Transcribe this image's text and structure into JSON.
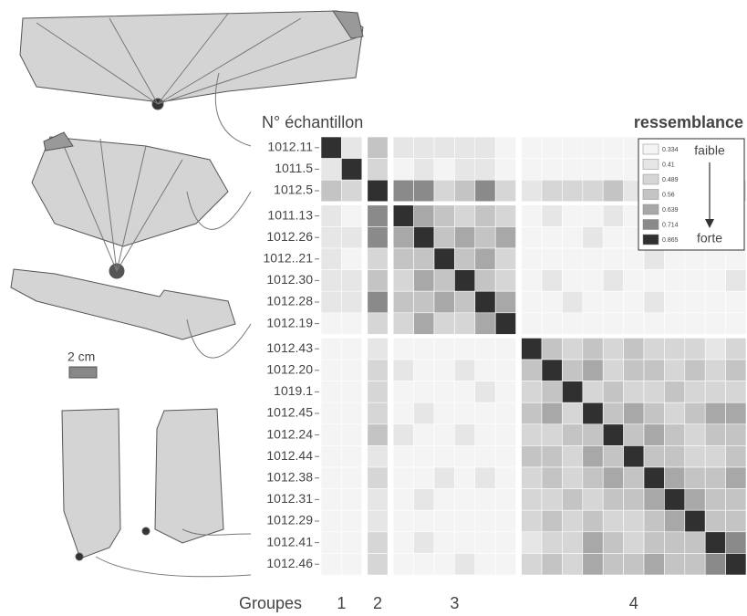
{
  "chart_data": {
    "type": "heatmap",
    "row_title": "N° échantillon",
    "legend_title": "ressemblance",
    "legend_low": "faible",
    "legend_high": "forte",
    "levels": [
      0.334,
      0.41,
      0.489,
      0.56,
      0.639,
      0.714,
      0.865
    ],
    "level_colors": [
      "#f4f4f4",
      "#e6e6e6",
      "#d6d6d6",
      "#c4c4c4",
      "#a8a8a8",
      "#8a8a8a",
      "#303030"
    ],
    "group_title": "Groupes",
    "groups": [
      "1",
      "2",
      "3",
      "4"
    ],
    "scale_label": "2 cm",
    "samples": [
      "1012.11",
      "1011.5",
      "1012.5",
      "1011.13",
      "1012.26",
      "1012..21",
      "1012.30",
      "1012.28",
      "1012.19",
      "1012.43",
      "1012.20",
      "1019.1",
      "1012.45",
      "1012.24",
      "1012.44",
      "1012.38",
      "1012.31",
      "1012.29",
      "1012.41",
      "1012.46"
    ],
    "z": [
      [
        0.865,
        0.41,
        0.56,
        0.41,
        0.41,
        0.41,
        0.41,
        0.41,
        0.334,
        0.334,
        0.334,
        0.334,
        0.334,
        0.334,
        0.334,
        0.334,
        0.334,
        0.334,
        0.334,
        0.334
      ],
      [
        0.41,
        0.865,
        0.489,
        0.334,
        0.41,
        0.334,
        0.41,
        0.41,
        0.334,
        0.334,
        0.334,
        0.334,
        0.334,
        0.334,
        0.334,
        0.334,
        0.334,
        0.334,
        0.334,
        0.334
      ],
      [
        0.56,
        0.489,
        0.865,
        0.714,
        0.714,
        0.489,
        0.56,
        0.714,
        0.489,
        0.41,
        0.489,
        0.489,
        0.489,
        0.56,
        0.41,
        0.489,
        0.41,
        0.41,
        0.489,
        0.489
      ],
      [
        0.41,
        0.334,
        0.714,
        0.865,
        0.639,
        0.56,
        0.489,
        0.56,
        0.489,
        0.334,
        0.41,
        0.334,
        0.334,
        0.41,
        0.334,
        0.334,
        0.334,
        0.334,
        0.334,
        0.334
      ],
      [
        0.41,
        0.41,
        0.714,
        0.639,
        0.865,
        0.56,
        0.639,
        0.56,
        0.639,
        0.334,
        0.334,
        0.334,
        0.41,
        0.334,
        0.334,
        0.334,
        0.41,
        0.334,
        0.41,
        0.334
      ],
      [
        0.41,
        0.334,
        0.489,
        0.56,
        0.56,
        0.865,
        0.56,
        0.639,
        0.489,
        0.334,
        0.334,
        0.334,
        0.334,
        0.334,
        0.334,
        0.41,
        0.334,
        0.334,
        0.334,
        0.334
      ],
      [
        0.41,
        0.41,
        0.56,
        0.489,
        0.639,
        0.56,
        0.865,
        0.56,
        0.489,
        0.334,
        0.41,
        0.334,
        0.334,
        0.41,
        0.334,
        0.334,
        0.334,
        0.334,
        0.334,
        0.41
      ],
      [
        0.41,
        0.41,
        0.714,
        0.56,
        0.56,
        0.639,
        0.56,
        0.865,
        0.639,
        0.334,
        0.334,
        0.41,
        0.334,
        0.334,
        0.334,
        0.41,
        0.334,
        0.334,
        0.334,
        0.334
      ],
      [
        0.334,
        0.334,
        0.489,
        0.489,
        0.639,
        0.489,
        0.489,
        0.639,
        0.865,
        0.334,
        0.334,
        0.334,
        0.334,
        0.334,
        0.334,
        0.334,
        0.334,
        0.334,
        0.334,
        0.334
      ],
      [
        0.334,
        0.334,
        0.41,
        0.334,
        0.334,
        0.334,
        0.334,
        0.334,
        0.334,
        0.865,
        0.56,
        0.489,
        0.56,
        0.489,
        0.56,
        0.489,
        0.489,
        0.489,
        0.41,
        0.489
      ],
      [
        0.334,
        0.334,
        0.489,
        0.41,
        0.334,
        0.334,
        0.41,
        0.334,
        0.334,
        0.56,
        0.865,
        0.56,
        0.639,
        0.489,
        0.56,
        0.56,
        0.489,
        0.56,
        0.489,
        0.56
      ],
      [
        0.334,
        0.334,
        0.489,
        0.334,
        0.334,
        0.334,
        0.334,
        0.41,
        0.334,
        0.489,
        0.56,
        0.865,
        0.489,
        0.56,
        0.489,
        0.489,
        0.56,
        0.489,
        0.489,
        0.489
      ],
      [
        0.334,
        0.334,
        0.489,
        0.334,
        0.41,
        0.334,
        0.334,
        0.334,
        0.334,
        0.56,
        0.639,
        0.489,
        0.865,
        0.56,
        0.639,
        0.56,
        0.489,
        0.56,
        0.639,
        0.639
      ],
      [
        0.334,
        0.334,
        0.56,
        0.41,
        0.334,
        0.334,
        0.41,
        0.334,
        0.334,
        0.489,
        0.489,
        0.56,
        0.56,
        0.865,
        0.56,
        0.639,
        0.56,
        0.489,
        0.56,
        0.56
      ],
      [
        0.334,
        0.334,
        0.41,
        0.334,
        0.334,
        0.334,
        0.334,
        0.334,
        0.334,
        0.56,
        0.56,
        0.489,
        0.639,
        0.56,
        0.865,
        0.56,
        0.56,
        0.489,
        0.489,
        0.56
      ],
      [
        0.334,
        0.334,
        0.489,
        0.334,
        0.334,
        0.41,
        0.334,
        0.41,
        0.334,
        0.489,
        0.56,
        0.489,
        0.56,
        0.639,
        0.56,
        0.865,
        0.639,
        0.56,
        0.56,
        0.639
      ],
      [
        0.334,
        0.334,
        0.41,
        0.334,
        0.41,
        0.334,
        0.334,
        0.334,
        0.334,
        0.489,
        0.489,
        0.56,
        0.489,
        0.56,
        0.56,
        0.639,
        0.865,
        0.639,
        0.56,
        0.56
      ],
      [
        0.334,
        0.334,
        0.41,
        0.334,
        0.334,
        0.334,
        0.334,
        0.334,
        0.334,
        0.489,
        0.56,
        0.489,
        0.56,
        0.489,
        0.489,
        0.56,
        0.639,
        0.865,
        0.56,
        0.56
      ],
      [
        0.334,
        0.334,
        0.489,
        0.334,
        0.41,
        0.334,
        0.334,
        0.334,
        0.334,
        0.41,
        0.489,
        0.489,
        0.639,
        0.56,
        0.489,
        0.56,
        0.56,
        0.56,
        0.865,
        0.714
      ],
      [
        0.334,
        0.334,
        0.489,
        0.334,
        0.334,
        0.334,
        0.41,
        0.334,
        0.334,
        0.489,
        0.56,
        0.489,
        0.639,
        0.56,
        0.56,
        0.639,
        0.56,
        0.56,
        0.714,
        0.865
      ]
    ]
  }
}
